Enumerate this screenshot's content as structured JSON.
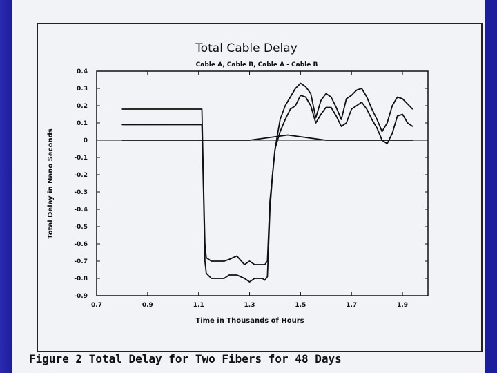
{
  "caption": "Figure 2 Total Delay for Two Fibers for 48 Days",
  "chart_data": {
    "type": "line",
    "title": "Total Cable Delay",
    "subtitle": "Cable A, Cable B, Cable A - Cable B",
    "xlabel": "Time in Thousands of Hours",
    "ylabel": "Total Delay in Nano Seconds",
    "xlim": [
      0.7,
      2.0
    ],
    "ylim": [
      -0.9,
      0.4
    ],
    "xticks": [
      "0.7",
      "0.9",
      "1.1",
      "1.3",
      "1.5",
      "1.7",
      "1.9"
    ],
    "xtick_values": [
      0.7,
      0.9,
      1.1,
      1.3,
      1.5,
      1.7,
      1.9
    ],
    "yticks": [
      "0.4",
      "0.3",
      "0.2",
      "0.1",
      "0",
      "-0.1",
      "-0.2",
      "-0.3",
      "-0.4",
      "-0.5",
      "-0.6",
      "-0.7",
      "-0.8",
      "-0.9"
    ],
    "ytick_values": [
      0.4,
      0.3,
      0.2,
      0.1,
      0,
      -0.1,
      -0.2,
      -0.3,
      -0.4,
      -0.5,
      -0.6,
      -0.7,
      -0.8,
      -0.9
    ],
    "grid": false,
    "series": [
      {
        "color": "#111111",
        "x": [
          0.8,
          0.85,
          0.9,
          0.95,
          1.0,
          1.05,
          1.1,
          1.113,
          1.12,
          1.125,
          1.13,
          1.15,
          1.18,
          1.2,
          1.22,
          1.25,
          1.28,
          1.3,
          1.32,
          1.35,
          1.36,
          1.37,
          1.38,
          1.39,
          1.4,
          1.42,
          1.44,
          1.46,
          1.48,
          1.5,
          1.52,
          1.54,
          1.56,
          1.58,
          1.6,
          1.62,
          1.64,
          1.66,
          1.68,
          1.7,
          1.72,
          1.74,
          1.76,
          1.78,
          1.8,
          1.82,
          1.84,
          1.86,
          1.88,
          1.9,
          1.92,
          1.94
        ],
        "y": [
          0.18,
          0.18,
          0.18,
          0.18,
          0.18,
          0.18,
          0.18,
          0.18,
          -0.3,
          -0.6,
          -0.68,
          -0.7,
          -0.7,
          -0.7,
          -0.69,
          -0.67,
          -0.72,
          -0.7,
          -0.72,
          -0.72,
          -0.72,
          -0.7,
          -0.35,
          -0.2,
          -0.05,
          0.12,
          0.2,
          0.25,
          0.3,
          0.33,
          0.31,
          0.27,
          0.13,
          0.23,
          0.27,
          0.25,
          0.19,
          0.12,
          0.24,
          0.26,
          0.29,
          0.3,
          0.25,
          0.18,
          0.12,
          0.05,
          0.1,
          0.2,
          0.25,
          0.24,
          0.21,
          0.18
        ]
      },
      {
        "color": "#111111",
        "x": [
          0.8,
          0.85,
          0.9,
          0.95,
          1.0,
          1.05,
          1.1,
          1.113,
          1.12,
          1.125,
          1.13,
          1.15,
          1.18,
          1.2,
          1.22,
          1.25,
          1.28,
          1.3,
          1.32,
          1.35,
          1.36,
          1.37,
          1.38,
          1.39,
          1.4,
          1.42,
          1.44,
          1.46,
          1.48,
          1.5,
          1.52,
          1.54,
          1.56,
          1.58,
          1.6,
          1.62,
          1.64,
          1.66,
          1.68,
          1.7,
          1.72,
          1.74,
          1.76,
          1.78,
          1.8,
          1.82,
          1.84,
          1.86,
          1.88,
          1.9,
          1.92,
          1.94
        ],
        "y": [
          0.09,
          0.09,
          0.09,
          0.09,
          0.09,
          0.09,
          0.09,
          0.09,
          -0.35,
          -0.7,
          -0.77,
          -0.8,
          -0.8,
          -0.8,
          -0.78,
          -0.78,
          -0.8,
          -0.82,
          -0.8,
          -0.8,
          -0.81,
          -0.79,
          -0.4,
          -0.2,
          -0.05,
          0.05,
          0.12,
          0.18,
          0.2,
          0.26,
          0.25,
          0.2,
          0.1,
          0.15,
          0.19,
          0.19,
          0.14,
          0.08,
          0.1,
          0.18,
          0.2,
          0.22,
          0.18,
          0.12,
          0.07,
          0.0,
          -0.02,
          0.04,
          0.14,
          0.15,
          0.1,
          0.08
        ]
      },
      {
        "color": "#111111",
        "x": [
          0.8,
          0.9,
          1.0,
          1.1,
          1.2,
          1.3,
          1.35,
          1.4,
          1.45,
          1.5,
          1.55,
          1.6,
          1.7,
          1.8,
          1.9,
          1.94
        ],
        "y": [
          0.0,
          0.0,
          0.0,
          0.0,
          0.0,
          0.0,
          0.01,
          0.02,
          0.03,
          0.02,
          0.01,
          0.0,
          0.0,
          0.0,
          0.0,
          0.0
        ]
      }
    ]
  }
}
